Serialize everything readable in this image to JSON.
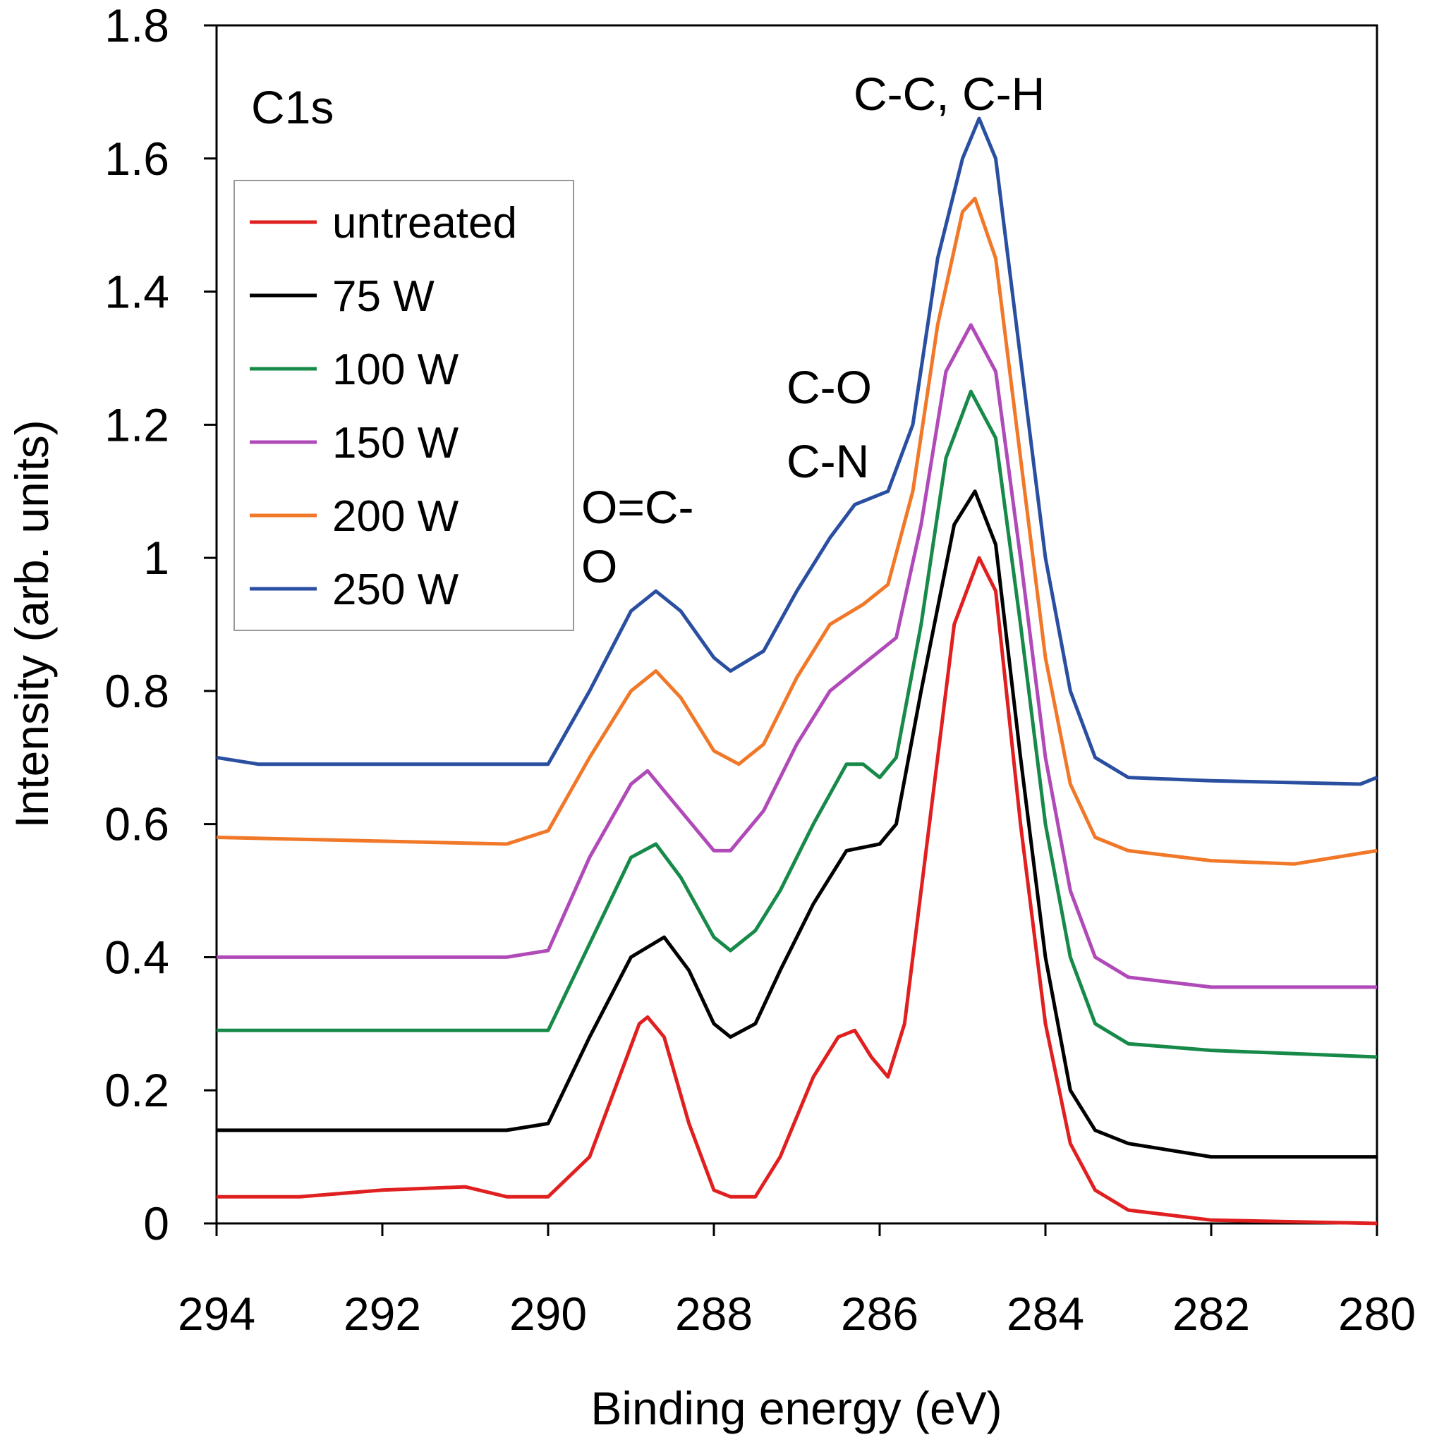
{
  "chart_data": {
    "type": "line",
    "title": "",
    "xlabel": "Binding energy (eV)",
    "ylabel": "Intensity (arb. units)",
    "xlim": [
      294,
      280
    ],
    "ylim": [
      0,
      1.8
    ],
    "x_reversed": true,
    "grid": false,
    "legend_position": "top-left",
    "xticks": [
      "294",
      "292",
      "290",
      "288",
      "286",
      "284",
      "282",
      "280"
    ],
    "xtick_values": [
      294,
      292,
      290,
      288,
      286,
      284,
      282,
      280
    ],
    "yticks": [
      "0",
      "0.2",
      "0.4",
      "0.6",
      "0.8",
      "1",
      "1.2",
      "1.4",
      "1.6",
      "1.8"
    ],
    "ytick_values": [
      0,
      0.2,
      0.4,
      0.6,
      0.8,
      1,
      1.2,
      1.4,
      1.6,
      1.8
    ],
    "annotations": {
      "region": "C1s",
      "peak_cc": "C-C, C-H",
      "peak_co_1": "C-O",
      "peak_co_2": "C-N",
      "peak_oco_1": "O=C-",
      "peak_oco_2": "O"
    },
    "series": [
      {
        "name": "untreated",
        "color": "#e02020",
        "x": [
          294,
          293,
          292,
          291,
          290.5,
          290,
          289.5,
          289.2,
          288.9,
          288.8,
          288.6,
          288.3,
          288,
          287.8,
          287.5,
          287.2,
          286.8,
          286.5,
          286.3,
          286.1,
          285.9,
          285.7,
          285.4,
          285.1,
          284.8,
          284.6,
          284.3,
          284,
          283.7,
          283.4,
          283,
          282,
          280
        ],
        "y": [
          0.04,
          0.04,
          0.05,
          0.055,
          0.04,
          0.04,
          0.1,
          0.2,
          0.3,
          0.31,
          0.28,
          0.15,
          0.05,
          0.04,
          0.04,
          0.1,
          0.22,
          0.28,
          0.29,
          0.25,
          0.22,
          0.3,
          0.6,
          0.9,
          1.0,
          0.95,
          0.6,
          0.3,
          0.12,
          0.05,
          0.02,
          0.005,
          0.0
        ]
      },
      {
        "name": "75 W",
        "color": "#000000",
        "x": [
          294,
          290.5,
          290,
          289.5,
          289,
          288.6,
          288.3,
          288,
          287.8,
          287.5,
          287.2,
          286.8,
          286.4,
          286,
          285.8,
          285.5,
          285.1,
          284.85,
          284.6,
          284.3,
          284,
          283.7,
          283.4,
          283,
          282,
          280
        ],
        "y": [
          0.14,
          0.14,
          0.15,
          0.28,
          0.4,
          0.43,
          0.38,
          0.3,
          0.28,
          0.3,
          0.38,
          0.48,
          0.56,
          0.57,
          0.6,
          0.8,
          1.05,
          1.1,
          1.02,
          0.7,
          0.4,
          0.2,
          0.14,
          0.12,
          0.1,
          0.1
        ]
      },
      {
        "name": "100 W",
        "color": "#178a4a",
        "x": [
          294,
          290,
          289.5,
          289,
          288.7,
          288.4,
          288,
          287.8,
          287.5,
          287.2,
          286.8,
          286.4,
          286.2,
          286,
          285.8,
          285.5,
          285.2,
          284.9,
          284.6,
          284.3,
          284,
          283.7,
          283.4,
          283,
          282,
          280
        ],
        "y": [
          0.29,
          0.29,
          0.42,
          0.55,
          0.57,
          0.52,
          0.43,
          0.41,
          0.44,
          0.5,
          0.6,
          0.69,
          0.69,
          0.67,
          0.7,
          0.9,
          1.15,
          1.25,
          1.18,
          0.9,
          0.6,
          0.4,
          0.3,
          0.27,
          0.26,
          0.25
        ]
      },
      {
        "name": "150 W",
        "color": "#b04ab8",
        "x": [
          294,
          292,
          290.5,
          290,
          289.5,
          289,
          288.8,
          288.4,
          288,
          287.8,
          287.4,
          287,
          286.6,
          286.2,
          285.8,
          285.5,
          285.2,
          284.9,
          284.6,
          284.3,
          284,
          283.7,
          283.4,
          283,
          282,
          280
        ],
        "y": [
          0.4,
          0.4,
          0.4,
          0.41,
          0.55,
          0.66,
          0.68,
          0.62,
          0.56,
          0.56,
          0.62,
          0.72,
          0.8,
          0.84,
          0.88,
          1.05,
          1.28,
          1.35,
          1.28,
          1.0,
          0.7,
          0.5,
          0.4,
          0.37,
          0.355,
          0.355
        ]
      },
      {
        "name": "200 W",
        "color": "#f07828",
        "x": [
          294,
          290.5,
          290,
          289.5,
          289,
          288.7,
          288.4,
          288,
          287.7,
          287.4,
          287,
          286.6,
          286.2,
          285.9,
          285.6,
          285.3,
          285,
          284.85,
          284.6,
          284.3,
          284,
          283.7,
          283.4,
          283,
          282,
          281,
          280
        ],
        "y": [
          0.58,
          0.57,
          0.59,
          0.7,
          0.8,
          0.83,
          0.79,
          0.71,
          0.69,
          0.72,
          0.82,
          0.9,
          0.93,
          0.96,
          1.1,
          1.35,
          1.52,
          1.54,
          1.45,
          1.15,
          0.85,
          0.66,
          0.58,
          0.56,
          0.545,
          0.54,
          0.56
        ]
      },
      {
        "name": "250 W",
        "color": "#2a4fa0",
        "x": [
          294,
          293.5,
          290,
          289.5,
          289,
          288.7,
          288.4,
          288,
          287.8,
          287.4,
          287,
          286.6,
          286.3,
          285.9,
          285.6,
          285.3,
          285,
          284.8,
          284.6,
          284.3,
          284,
          283.7,
          283.4,
          283,
          282,
          280.2,
          280
        ],
        "y": [
          0.7,
          0.69,
          0.69,
          0.8,
          0.92,
          0.95,
          0.92,
          0.85,
          0.83,
          0.86,
          0.95,
          1.03,
          1.08,
          1.1,
          1.2,
          1.45,
          1.6,
          1.66,
          1.6,
          1.3,
          1.0,
          0.8,
          0.7,
          0.67,
          0.665,
          0.66,
          0.67
        ]
      }
    ]
  }
}
